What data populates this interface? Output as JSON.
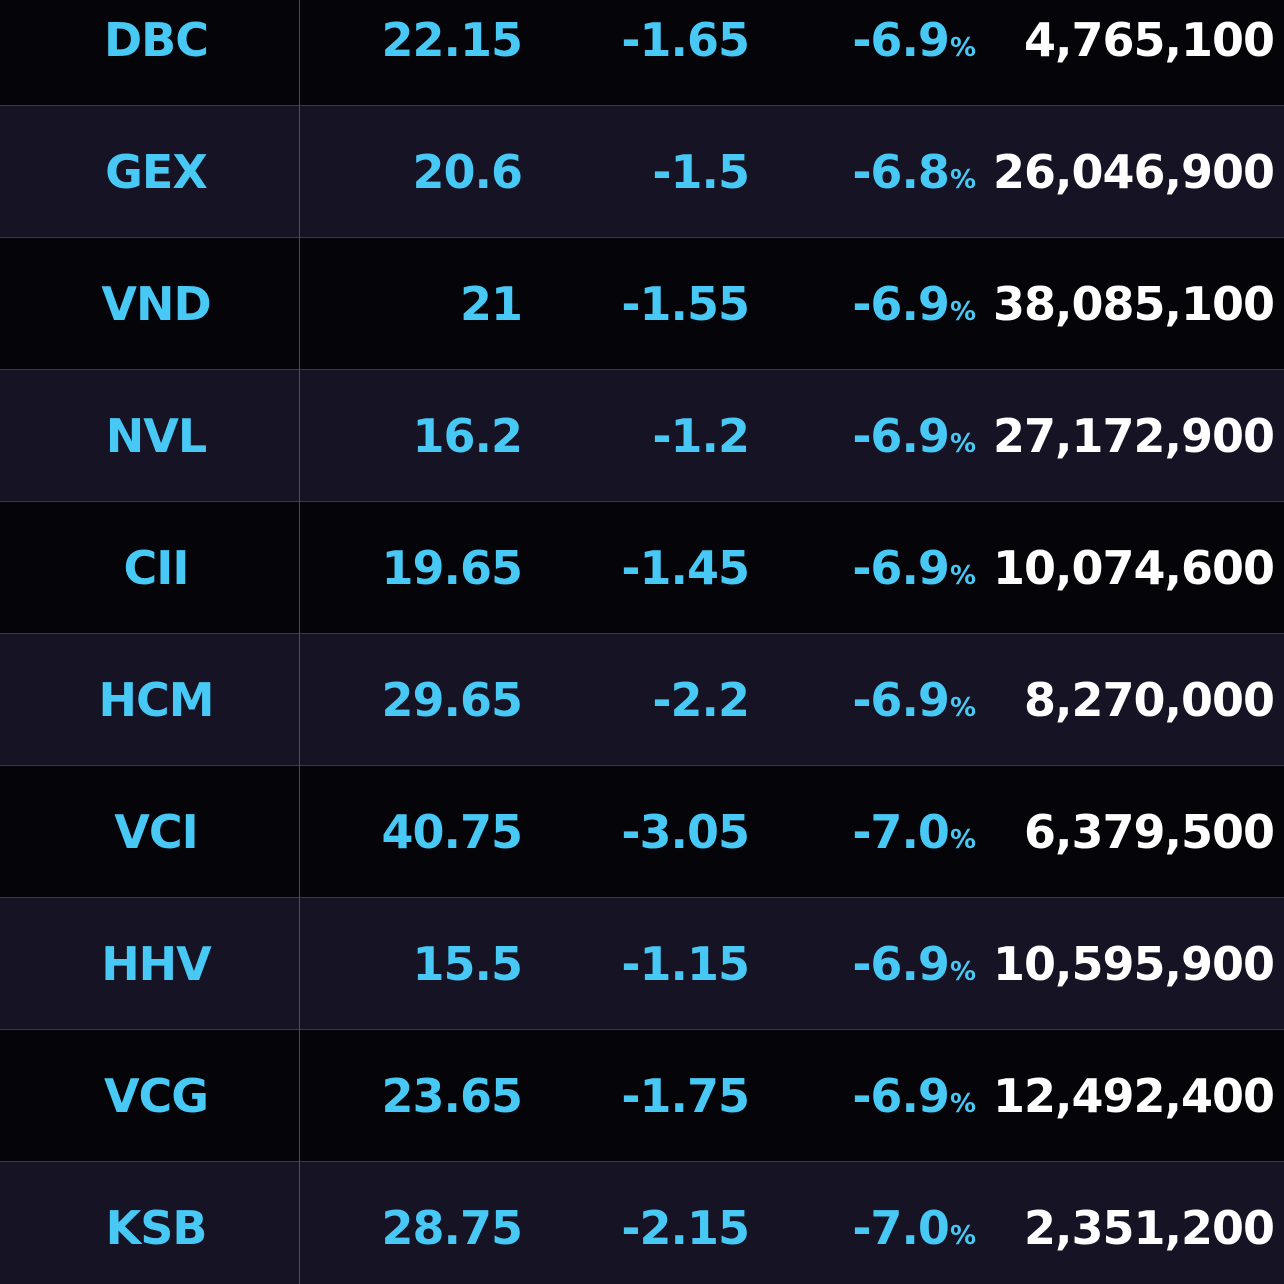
{
  "colors": {
    "background_dark": "#050409",
    "background_alt": "#151324",
    "down_color": "#47c8f5",
    "volume_color": "#ffffff",
    "divider": "#3a3a46"
  },
  "percent_unit": "%",
  "rows": [
    {
      "symbol": "DBC",
      "price": "22.15",
      "change": "-1.65",
      "pct": "-6.9",
      "volume": "4,765,100"
    },
    {
      "symbol": "GEX",
      "price": "20.6",
      "change": "-1.5",
      "pct": "-6.8",
      "volume": "26,046,900"
    },
    {
      "symbol": "VND",
      "price": "21",
      "change": "-1.55",
      "pct": "-6.9",
      "volume": "38,085,100"
    },
    {
      "symbol": "NVL",
      "price": "16.2",
      "change": "-1.2",
      "pct": "-6.9",
      "volume": "27,172,900"
    },
    {
      "symbol": "CII",
      "price": "19.65",
      "change": "-1.45",
      "pct": "-6.9",
      "volume": "10,074,600"
    },
    {
      "symbol": "HCM",
      "price": "29.65",
      "change": "-2.2",
      "pct": "-6.9",
      "volume": "8,270,000"
    },
    {
      "symbol": "VCI",
      "price": "40.75",
      "change": "-3.05",
      "pct": "-7.0",
      "volume": "6,379,500"
    },
    {
      "symbol": "HHV",
      "price": "15.5",
      "change": "-1.15",
      "pct": "-6.9",
      "volume": "10,595,900"
    },
    {
      "symbol": "VCG",
      "price": "23.65",
      "change": "-1.75",
      "pct": "-6.9",
      "volume": "12,492,400"
    },
    {
      "symbol": "KSB",
      "price": "28.75",
      "change": "-2.15",
      "pct": "-7.0",
      "volume": "2,351,200"
    }
  ]
}
